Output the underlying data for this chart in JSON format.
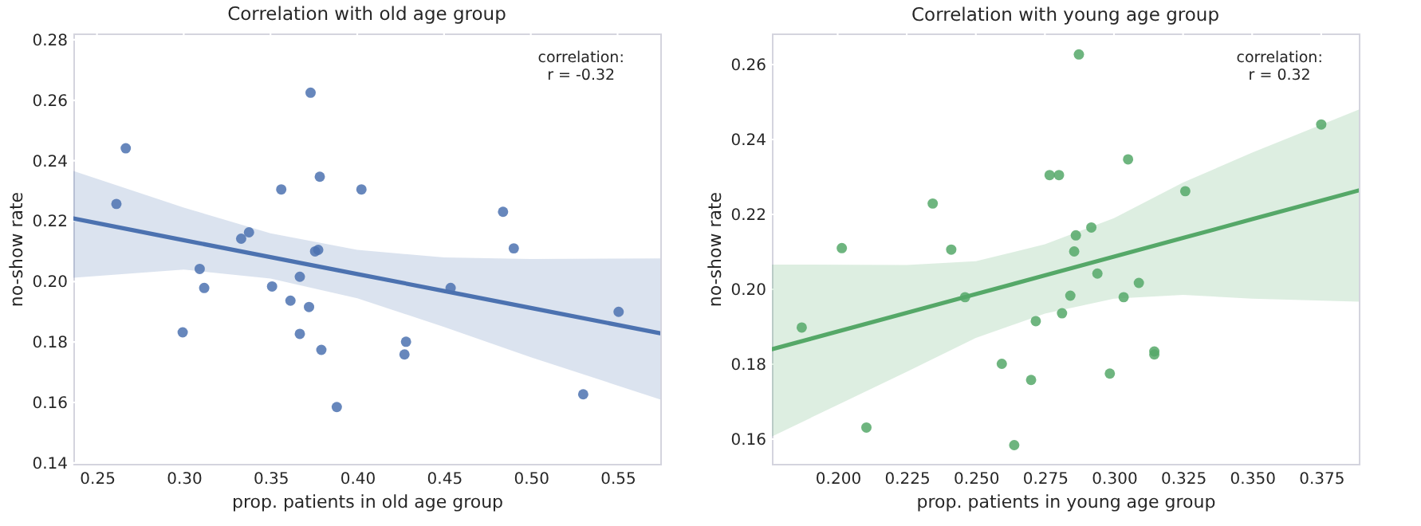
{
  "chart_data": [
    {
      "type": "scatter",
      "title": "Correlation with old age group",
      "xlabel": "prop. patients in old age group",
      "ylabel": "no-show rate",
      "grid": true,
      "marker": "circle",
      "xlim": [
        0.2364,
        0.5746
      ],
      "ylim": [
        0.1397,
        0.2821
      ],
      "xticks": [
        {
          "value": 0.25,
          "label": "0.25"
        },
        {
          "value": 0.3,
          "label": "0.30"
        },
        {
          "value": 0.35,
          "label": "0.35"
        },
        {
          "value": 0.4,
          "label": "0.40"
        },
        {
          "value": 0.45,
          "label": "0.45"
        },
        {
          "value": 0.5,
          "label": "0.50"
        },
        {
          "value": 0.55,
          "label": "0.55"
        }
      ],
      "yticks": [
        {
          "value": 0.14,
          "label": "0.14"
        },
        {
          "value": 0.16,
          "label": "0.16"
        },
        {
          "value": 0.18,
          "label": "0.18"
        },
        {
          "value": 0.2,
          "label": "0.20"
        },
        {
          "value": 0.22,
          "label": "0.22"
        },
        {
          "value": 0.24,
          "label": "0.24"
        },
        {
          "value": 0.26,
          "label": "0.26"
        },
        {
          "value": 0.28,
          "label": "0.28"
        }
      ],
      "annotations": [
        "correlation:\n r = -0.32"
      ],
      "series": [
        {
          "type": "scatter",
          "color": "#4c72b0",
          "x": [
            0.2666,
            0.2612,
            0.2994,
            0.3092,
            0.3118,
            0.3331,
            0.3376,
            0.3509,
            0.3562,
            0.3615,
            0.3669,
            0.3669,
            0.3722,
            0.3731,
            0.3757,
            0.3775,
            0.3784,
            0.3793,
            0.3882,
            0.4024,
            0.4272,
            0.4281,
            0.4538,
            0.484,
            0.4902,
            0.5302,
            0.5506
          ],
          "values": [
            0.2441,
            0.2257,
            0.1832,
            0.2042,
            0.1979,
            0.2142,
            0.2163,
            0.1984,
            0.2305,
            0.1937,
            0.2016,
            0.1827,
            0.1916,
            0.2625,
            0.21,
            0.2105,
            0.2347,
            0.1774,
            0.1585,
            0.2305,
            0.1759,
            0.1801,
            0.1979,
            0.2231,
            0.211,
            0.1627,
            0.19
          ]
        },
        {
          "type": "line",
          "marker": "none",
          "color": "#4c72b0",
          "x": [
            0.2364,
            0.3,
            0.35,
            0.4,
            0.45,
            0.5,
            0.5746
          ],
          "values": [
            0.2209,
            0.2137,
            0.2081,
            0.2025,
            0.1969,
            0.1913,
            0.1829
          ],
          "lower": [
            0.2013,
            0.204,
            0.201,
            0.1945,
            0.185,
            0.175,
            0.161
          ],
          "upper": [
            0.2366,
            0.2245,
            0.216,
            0.2105,
            0.208,
            0.2075,
            0.2077
          ]
        }
      ]
    },
    {
      "type": "scatter",
      "title": "Correlation with young age group",
      "xlabel": "prop. patients in young age group",
      "ylabel": "no-show rate",
      "grid": true,
      "marker": "circle",
      "xlim": [
        0.1762,
        0.3886
      ],
      "ylim": [
        0.1534,
        0.2683
      ],
      "xticks": [
        {
          "value": 0.2,
          "label": "0.200"
        },
        {
          "value": 0.225,
          "label": "0.225"
        },
        {
          "value": 0.25,
          "label": "0.250"
        },
        {
          "value": 0.275,
          "label": "0.275"
        },
        {
          "value": 0.3,
          "label": "0.300"
        },
        {
          "value": 0.325,
          "label": "0.325"
        },
        {
          "value": 0.35,
          "label": "0.350"
        },
        {
          "value": 0.375,
          "label": "0.375"
        }
      ],
      "yticks": [
        {
          "value": 0.16,
          "label": "0.16"
        },
        {
          "value": 0.18,
          "label": "0.18"
        },
        {
          "value": 0.2,
          "label": "0.20"
        },
        {
          "value": 0.22,
          "label": "0.22"
        },
        {
          "value": 0.24,
          "label": "0.24"
        },
        {
          "value": 0.26,
          "label": "0.26"
        }
      ],
      "annotations": [
        "correlation:\n r = 0.32"
      ],
      "series": [
        {
          "type": "scatter",
          "color": "#55a868",
          "x": [
            0.187,
            0.2015,
            0.2104,
            0.2344,
            0.2411,
            0.2461,
            0.2594,
            0.2639,
            0.27,
            0.2717,
            0.2767,
            0.2801,
            0.2812,
            0.2842,
            0.2856,
            0.2862,
            0.2873,
            0.2918,
            0.294,
            0.2985,
            0.3035,
            0.3051,
            0.309,
            0.3146,
            0.3146,
            0.3258,
            0.375
          ],
          "values": [
            0.1898,
            0.211,
            0.1631,
            0.2229,
            0.2106,
            0.1979,
            0.1801,
            0.1584,
            0.1758,
            0.1915,
            0.2305,
            0.2305,
            0.1936,
            0.1983,
            0.2101,
            0.2144,
            0.2627,
            0.2165,
            0.2042,
            0.1775,
            0.1979,
            0.2347,
            0.2017,
            0.1834,
            0.1826,
            0.2262,
            0.244
          ]
        },
        {
          "type": "line",
          "marker": "none",
          "color": "#55a868",
          "x": [
            0.1762,
            0.225,
            0.25,
            0.275,
            0.3,
            0.325,
            0.35,
            0.3886
          ],
          "values": [
            0.184,
            0.1937,
            0.1987,
            0.2037,
            0.2087,
            0.2137,
            0.2187,
            0.2264
          ],
          "lower": [
            0.1607,
            0.178,
            0.187,
            0.1935,
            0.1975,
            0.1985,
            0.1975,
            0.1967
          ],
          "upper": [
            0.2066,
            0.2065,
            0.2075,
            0.212,
            0.219,
            0.2285,
            0.2365,
            0.248
          ]
        }
      ]
    }
  ]
}
